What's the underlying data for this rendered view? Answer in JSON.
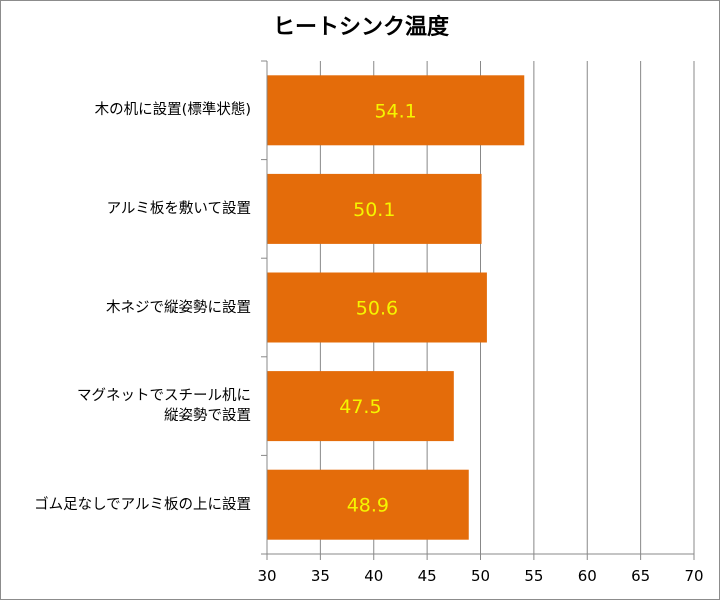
{
  "chart_data": {
    "type": "bar",
    "orientation": "horizontal",
    "title": "ヒートシンク温度",
    "categories": [
      "木の机に設置(標準状態)",
      "アルミ板を敷いて設置",
      "木ネジで縦姿勢に設置",
      "マグネットでスチール机に\n縦姿勢で設置",
      "ゴム足なしでアルミ板の上に設置"
    ],
    "values": [
      54.1,
      50.1,
      50.6,
      47.5,
      48.9
    ],
    "data_labels": [
      "54.1",
      "50.1",
      "50.6",
      "47.5",
      "48.9"
    ],
    "xlim": [
      30,
      70
    ],
    "xticks": [
      "30",
      "35",
      "40",
      "45",
      "50",
      "55",
      "60",
      "65",
      "70"
    ],
    "xlabel": "",
    "ylabel": "",
    "grid": "vertical",
    "legend": "none",
    "colors": {
      "bar": "#e46c0a",
      "data_label": "#f5f500",
      "grid": "#888888",
      "axis": "#888888"
    }
  }
}
